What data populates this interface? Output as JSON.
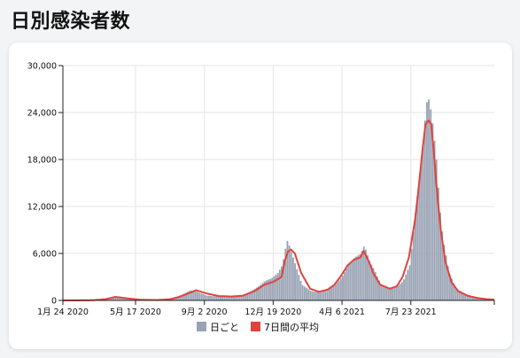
{
  "page": {
    "title": "日別感染者数"
  },
  "colors": {
    "bar": "#9aa3b5",
    "line": "#e0443c",
    "grid": "#e6e6e6",
    "axis": "#222222"
  },
  "chart_data": {
    "type": "bar",
    "title": "",
    "xlabel": "",
    "ylabel": "",
    "ylim": [
      0,
      30000
    ],
    "yticks": [
      0,
      6000,
      12000,
      18000,
      24000,
      30000
    ],
    "ytick_labels": [
      "0",
      "6,000",
      "12,000",
      "18,000",
      "24,000",
      "30,000"
    ],
    "xlim": [
      "2020-01-24",
      "2021-12-01"
    ],
    "xticks": [
      "2020-01-24",
      "2020-05-17",
      "2020-09-02",
      "2020-12-19",
      "2021-04-06",
      "2021-07-23"
    ],
    "xtick_labels": [
      "1月 24 2020",
      "5月 17 2020",
      "9月 2 2020",
      "12月 19 2020",
      "4月 6 2021",
      "7月 23 2021"
    ],
    "grid": true,
    "legend_position": "bottom",
    "series": [
      {
        "name": "日ごと",
        "kind": "bar",
        "x": [
          "2020-01-24",
          "2020-02-15",
          "2020-03-10",
          "2020-03-31",
          "2020-04-10",
          "2020-04-20",
          "2020-05-01",
          "2020-05-20",
          "2020-06-15",
          "2020-07-05",
          "2020-07-20",
          "2020-08-01",
          "2020-08-10",
          "2020-08-20",
          "2020-09-05",
          "2020-09-25",
          "2020-10-15",
          "2020-11-01",
          "2020-11-15",
          "2020-11-25",
          "2020-12-05",
          "2020-12-15",
          "2020-12-25",
          "2021-01-01",
          "2021-01-05",
          "2021-01-08",
          "2021-01-12",
          "2021-01-16",
          "2021-01-22",
          "2021-02-01",
          "2021-02-15",
          "2021-03-01",
          "2021-03-15",
          "2021-03-25",
          "2021-04-05",
          "2021-04-15",
          "2021-04-25",
          "2021-05-05",
          "2021-05-08",
          "2021-05-12",
          "2021-05-18",
          "2021-05-25",
          "2021-06-05",
          "2021-06-20",
          "2021-07-01",
          "2021-07-10",
          "2021-07-20",
          "2021-07-25",
          "2021-07-30",
          "2021-08-05",
          "2021-08-10",
          "2021-08-15",
          "2021-08-18",
          "2021-08-21",
          "2021-08-26",
          "2021-08-31",
          "2021-09-05",
          "2021-09-10",
          "2021-09-20",
          "2021-10-01",
          "2021-10-15",
          "2021-11-01",
          "2021-11-20",
          "2021-12-01"
        ],
        "values": [
          0,
          0,
          50,
          200,
          400,
          500,
          250,
          80,
          50,
          150,
          500,
          900,
          1300,
          1100,
          600,
          500,
          500,
          600,
          1300,
          1800,
          2500,
          2800,
          3500,
          4500,
          6000,
          7800,
          7000,
          6000,
          4500,
          2000,
          1200,
          1000,
          1400,
          2000,
          3000,
          4500,
          5500,
          6000,
          7000,
          6500,
          5000,
          4000,
          2000,
          1500,
          1800,
          2500,
          4500,
          8000,
          12000,
          16000,
          20000,
          25000,
          26000,
          25000,
          22000,
          18000,
          12000,
          8000,
          3500,
          1500,
          800,
          300,
          150,
          100
        ]
      },
      {
        "name": "7日間の平均",
        "kind": "line",
        "x": [
          "2020-01-24",
          "2020-02-15",
          "2020-03-10",
          "2020-03-31",
          "2020-04-15",
          "2020-05-05",
          "2020-05-25",
          "2020-06-20",
          "2020-07-10",
          "2020-07-25",
          "2020-08-05",
          "2020-08-20",
          "2020-09-05",
          "2020-09-25",
          "2020-10-15",
          "2020-11-01",
          "2020-11-20",
          "2020-12-05",
          "2020-12-20",
          "2021-01-01",
          "2021-01-06",
          "2021-01-11",
          "2021-01-16",
          "2021-01-22",
          "2021-02-01",
          "2021-02-15",
          "2021-03-01",
          "2021-03-15",
          "2021-03-25",
          "2021-04-05",
          "2021-04-15",
          "2021-04-25",
          "2021-05-05",
          "2021-05-10",
          "2021-05-18",
          "2021-05-25",
          "2021-06-05",
          "2021-06-20",
          "2021-07-01",
          "2021-07-10",
          "2021-07-20",
          "2021-07-30",
          "2021-08-05",
          "2021-08-10",
          "2021-08-15",
          "2021-08-20",
          "2021-08-24",
          "2021-08-28",
          "2021-09-02",
          "2021-09-08",
          "2021-09-15",
          "2021-09-25",
          "2021-10-05",
          "2021-10-20",
          "2021-11-05",
          "2021-11-20",
          "2021-12-01"
        ],
        "values": [
          0,
          0,
          20,
          150,
          450,
          250,
          80,
          50,
          150,
          450,
          800,
          1300,
          900,
          550,
          500,
          600,
          1200,
          2000,
          2400,
          3000,
          5000,
          6200,
          6500,
          6000,
          3500,
          1500,
          1100,
          1400,
          2000,
          3200,
          4500,
          5200,
          5500,
          6300,
          5000,
          3500,
          2000,
          1500,
          1800,
          3000,
          5500,
          10500,
          15000,
          19000,
          22500,
          23000,
          22500,
          19000,
          14000,
          9000,
          5000,
          2300,
          1200,
          600,
          300,
          150,
          100
        ]
      }
    ]
  }
}
